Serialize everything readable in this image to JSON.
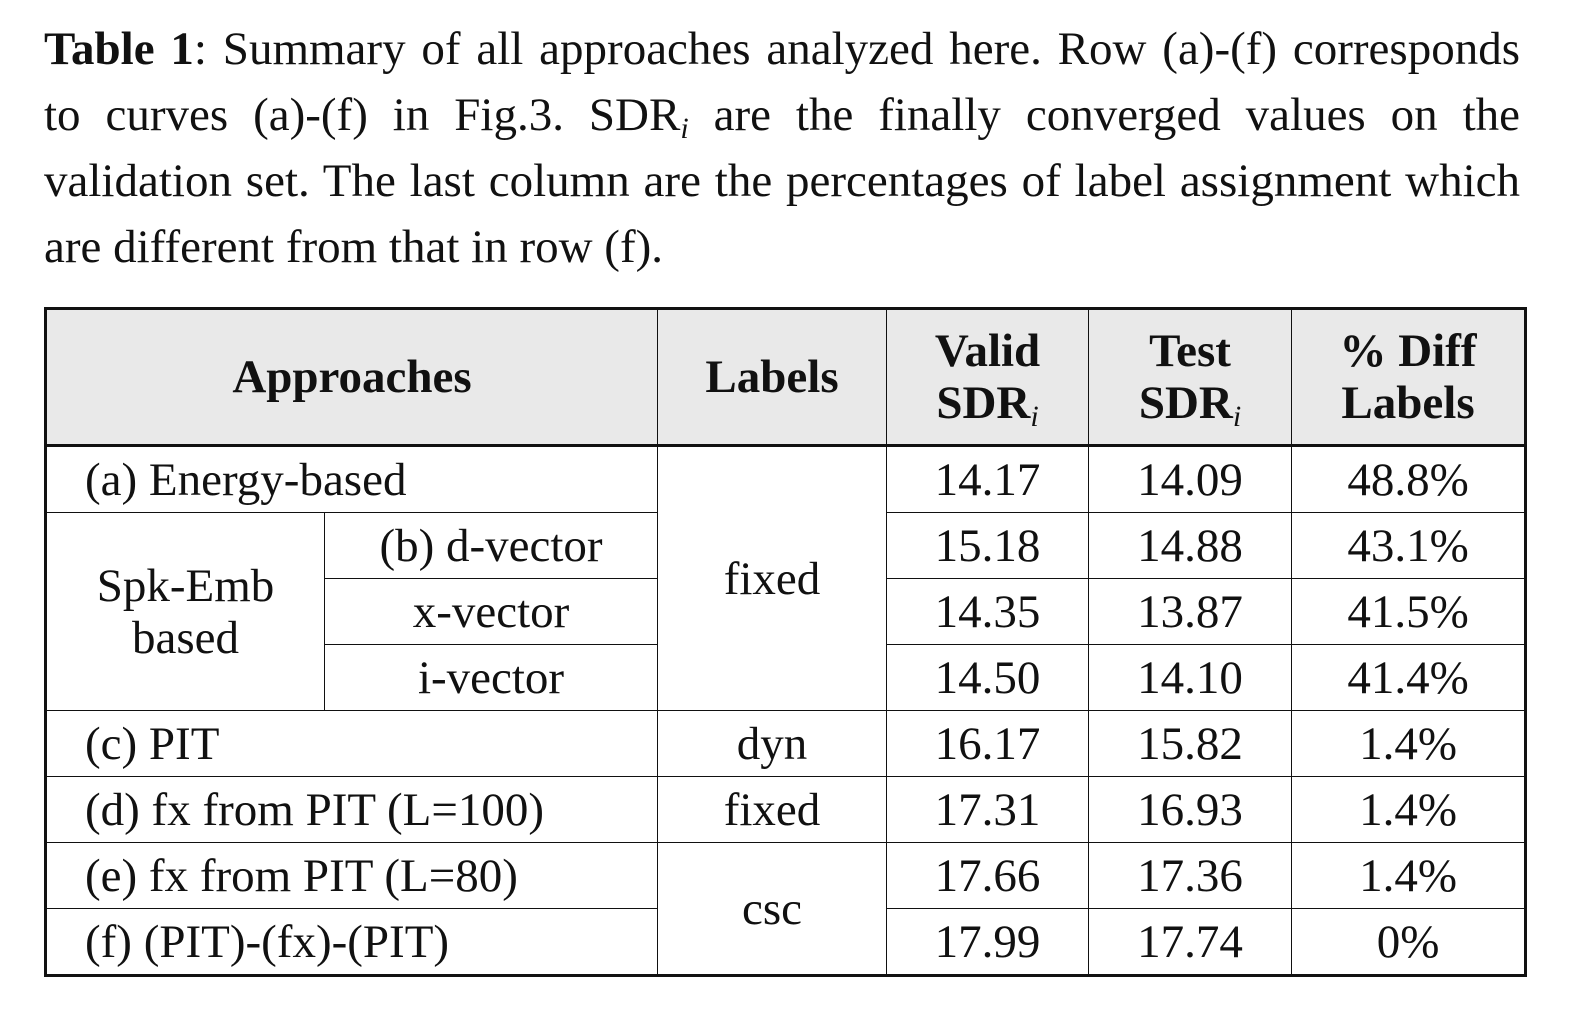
{
  "caption": {
    "label": "Table 1",
    "text_before": ": Summary of all approaches analyzed here. Row (a)-(f) corresponds to curves (a)-(f) in Fig.3. SDR",
    "subscript": "i",
    "text_after": " are the finally converged values on the validation set. The last column are the percentages of label assignment which are different from that in row (f)."
  },
  "table": {
    "header": {
      "approaches": "Approaches",
      "labels": "Labels",
      "valid": {
        "line1": "Valid",
        "line2": "SDR",
        "sub": "i"
      },
      "test": {
        "line1": "Test",
        "line2": "SDR",
        "sub": "i"
      },
      "diff": {
        "line1": "% Diff",
        "line2": "Labels"
      }
    },
    "rows": [
      {
        "approach": "(a) Energy-based",
        "label": "fixed",
        "valid": "14.17",
        "test": "14.09",
        "diff": "48.8%"
      },
      {
        "group": "Spk-Emb based",
        "approach": "(b) d-vector",
        "valid": "15.18",
        "test": "14.88",
        "diff": "43.1%"
      },
      {
        "approach": "x-vector",
        "valid": "14.35",
        "test": "13.87",
        "diff": "41.5%"
      },
      {
        "approach": "i-vector",
        "valid": "14.50",
        "test": "14.10",
        "diff": "41.4%"
      },
      {
        "approach": "(c) PIT",
        "label": "dyn",
        "valid": "16.17",
        "test": "15.82",
        "diff": "1.4%"
      },
      {
        "approach": "(d) fx from PIT (L=100)",
        "label": "fixed",
        "valid": "17.31",
        "test": "16.93",
        "diff": "1.4%"
      },
      {
        "approach": "(e) fx from PIT (L=80)",
        "label": "csc",
        "valid": "17.66",
        "test": "17.36",
        "diff": "1.4%"
      },
      {
        "approach": "(f) (PIT)-(fx)-(PIT)",
        "valid": "17.99",
        "test": "17.74",
        "diff": "0%"
      }
    ]
  }
}
